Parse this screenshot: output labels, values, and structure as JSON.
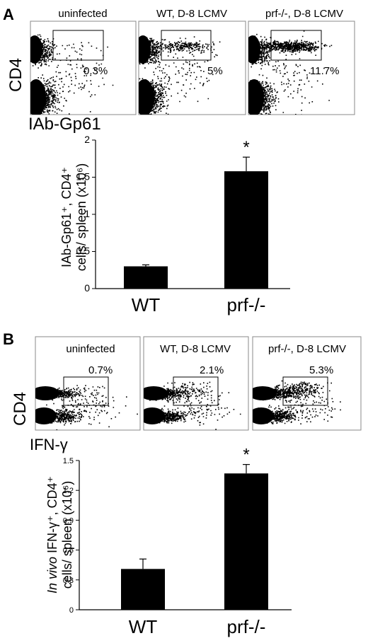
{
  "panelA": {
    "letter": "A",
    "flow": {
      "ylabel": "CD4",
      "xlabel": "IAb-Gp61",
      "plots": [
        {
          "title": "uninfected",
          "percent": "0.3%",
          "gated_fraction": 0.003
        },
        {
          "title": "WT, D-8 LCMV",
          "percent": "5%",
          "gated_fraction": 0.05
        },
        {
          "title": "prf-/-, D-8 LCMV",
          "percent": "11.7%",
          "gated_fraction": 0.117
        }
      ]
    }
  },
  "panelB": {
    "letter": "B",
    "flow": {
      "ylabel": "CD4",
      "xlabel": "IFN-γ",
      "plots": [
        {
          "title": "uninfected",
          "percent": "0.7%",
          "gated_fraction": 0.007
        },
        {
          "title": "WT, D-8 LCMV",
          "percent": "2.1%",
          "gated_fraction": 0.021
        },
        {
          "title": "prf-/-, D-8 LCMV",
          "percent": "5.3%",
          "gated_fraction": 0.053
        }
      ]
    }
  },
  "chart_data": [
    {
      "type": "bar",
      "categories": [
        "WT",
        "prf-/-"
      ],
      "values": [
        0.3,
        1.58
      ],
      "errors": [
        0.02,
        0.19
      ],
      "ylim": [
        0,
        2
      ],
      "yticks": [
        "0",
        "0.5",
        "1",
        "1.5",
        "2"
      ],
      "ylabel_line1": "IAb-Gp61⁺, CD4⁺",
      "ylabel_line2": "cells/ spleen (x10⁶)",
      "annotation": "*",
      "bar_color": "#000000"
    },
    {
      "type": "bar",
      "categories": [
        "WT",
        "prf-/-"
      ],
      "values": [
        0.41,
        1.37
      ],
      "errors": [
        0.1,
        0.09
      ],
      "ylim": [
        0,
        1.5
      ],
      "yticks": [
        "0",
        "0.3",
        "0.6",
        "0.9",
        "1.2",
        "1.5"
      ],
      "ylabel_line1_italic": "In vivo",
      "ylabel_line1": " IFN-γ⁺, CD4⁺",
      "ylabel_line2": "cells/ spleen (x10⁶)",
      "annotation": "*",
      "bar_color": "#000000"
    }
  ]
}
